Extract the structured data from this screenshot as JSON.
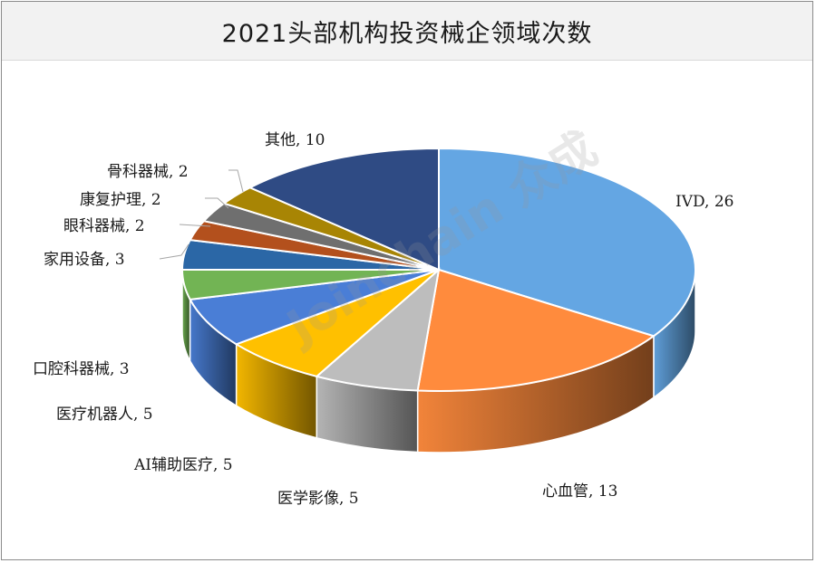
{
  "chart_data": {
    "type": "pie",
    "title": "2021头部机构投资械企领域次数",
    "slices": [
      {
        "label": "IVD",
        "value": 26,
        "color": "#64a6e3"
      },
      {
        "label": "心血管",
        "value": 13,
        "color": "#ff8b3d"
      },
      {
        "label": "医学影像",
        "value": 5,
        "color": "#bdbdbd"
      },
      {
        "label": "AI辅助医疗",
        "value": 5,
        "color": "#ffc000"
      },
      {
        "label": "医疗机器人",
        "value": 5,
        "color": "#4a7ed6"
      },
      {
        "label": "口腔科器械",
        "value": 3,
        "color": "#72b454"
      },
      {
        "label": "家用设备",
        "value": 3,
        "color": "#2b67a6"
      },
      {
        "label": "眼科器械",
        "value": 2,
        "color": "#b3501d"
      },
      {
        "label": "康复护理",
        "value": 2,
        "color": "#6f6f6f"
      },
      {
        "label": "骨科器械",
        "value": 2,
        "color": "#a88504"
      },
      {
        "label": "其他",
        "value": 10,
        "color": "#2f4b84"
      }
    ]
  },
  "watermark": "Joinchain 众成"
}
